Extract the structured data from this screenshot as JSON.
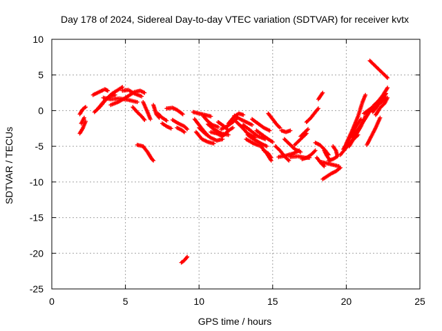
{
  "chart_data": {
    "type": "scatter",
    "title": "Day 178 of 2024, Sidereal Day-to-day VTEC variation (SDTVAR) for receiver kvtx",
    "xlabel": "GPS time / hours",
    "ylabel": "SDTVAR / TECUs",
    "xlim": [
      0,
      25
    ],
    "ylim": [
      -25,
      10
    ],
    "xticks": [
      0,
      5,
      10,
      15,
      20,
      25
    ],
    "yticks": [
      -25,
      -20,
      -15,
      -10,
      -5,
      0,
      5,
      10
    ],
    "xtick_labels": [
      "0",
      "5",
      "10",
      "15",
      "20",
      "25"
    ],
    "ytick_labels": [
      "-25",
      "-20",
      "-15",
      "-10",
      "-5",
      "0",
      "5",
      "10"
    ],
    "grid": true,
    "marker": "plus",
    "series": [
      {
        "name": "SDTVAR",
        "color": "#ff0000",
        "tracks": [
          [
            [
              1.9,
              -0.5
            ],
            [
              2.1,
              0.2
            ],
            [
              2.3,
              0.5
            ]
          ],
          [
            [
              1.9,
              -3.2
            ],
            [
              2.1,
              -2.5
            ],
            [
              2.3,
              -1.5
            ]
          ],
          [
            [
              2.0,
              -1.8
            ],
            [
              2.2,
              -1.0
            ]
          ],
          [
            [
              2.8,
              2.2
            ],
            [
              3.2,
              2.6
            ],
            [
              3.6,
              3.0
            ],
            [
              3.8,
              2.8
            ]
          ],
          [
            [
              2.9,
              -0.2
            ],
            [
              3.3,
              0.6
            ],
            [
              3.7,
              1.6
            ],
            [
              4.1,
              2.4
            ],
            [
              4.5,
              2.9
            ],
            [
              4.8,
              3.3
            ]
          ],
          [
            [
              3.1,
              0.2
            ],
            [
              3.5,
              1.2
            ],
            [
              3.9,
              2.0
            ],
            [
              4.3,
              2.2
            ]
          ],
          [
            [
              3.5,
              1.8
            ],
            [
              4.0,
              1.6
            ],
            [
              4.6,
              1.7
            ],
            [
              5.2,
              1.5
            ],
            [
              5.8,
              1.2
            ]
          ],
          [
            [
              4.0,
              0.8
            ],
            [
              4.5,
              1.2
            ],
            [
              5.0,
              1.8
            ],
            [
              5.6,
              2.6
            ],
            [
              6.0,
              2.8
            ],
            [
              6.3,
              2.5
            ]
          ],
          [
            [
              4.8,
              2.8
            ],
            [
              5.2,
              2.9
            ],
            [
              5.6,
              2.4
            ],
            [
              6.1,
              2.0
            ]
          ],
          [
            [
              5.5,
              0.5
            ],
            [
              5.8,
              -0.2
            ],
            [
              6.1,
              -0.8
            ],
            [
              6.3,
              -1.3
            ]
          ],
          [
            [
              6.2,
              1.2
            ],
            [
              6.5,
              -0.2
            ],
            [
              6.7,
              -1.2
            ]
          ],
          [
            [
              5.8,
              -4.8
            ],
            [
              6.2,
              -5.0
            ],
            [
              6.5,
              -5.8
            ],
            [
              6.8,
              -6.8
            ],
            [
              6.9,
              -7.0
            ]
          ],
          [
            [
              6.9,
              0.8
            ],
            [
              7.1,
              -0.5
            ],
            [
              7.3,
              -1.0
            ]
          ],
          [
            [
              7.2,
              -0.4
            ],
            [
              7.5,
              -1.0
            ],
            [
              7.8,
              -1.4
            ]
          ],
          [
            [
              7.5,
              -1.8
            ],
            [
              7.8,
              -2.2
            ],
            [
              8.1,
              -2.5
            ]
          ],
          [
            [
              7.8,
              0.3
            ],
            [
              8.2,
              0.4
            ],
            [
              8.5,
              0.1
            ],
            [
              8.9,
              -0.5
            ]
          ],
          [
            [
              8.2,
              -1.3
            ],
            [
              8.6,
              -1.8
            ],
            [
              9.0,
              -2.2
            ],
            [
              9.2,
              -2.6
            ]
          ],
          [
            [
              8.5,
              -2.4
            ],
            [
              8.8,
              -2.7
            ],
            [
              9.0,
              -3.0
            ]
          ],
          [
            [
              8.8,
              -21.3
            ],
            [
              9.0,
              -21.0
            ],
            [
              9.2,
              -20.5
            ]
          ],
          [
            [
              9.6,
              -0.2
            ],
            [
              10.0,
              -0.4
            ],
            [
              10.4,
              -0.6
            ],
            [
              10.8,
              -0.8
            ]
          ],
          [
            [
              9.7,
              -1.2
            ],
            [
              10.0,
              -2.0
            ],
            [
              10.3,
              -2.8
            ],
            [
              10.6,
              -3.5
            ]
          ],
          [
            [
              9.8,
              -3.0
            ],
            [
              10.2,
              -4.0
            ],
            [
              10.6,
              -4.4
            ],
            [
              11.0,
              -4.6
            ]
          ],
          [
            [
              10.0,
              -2.4
            ],
            [
              10.4,
              -3.2
            ],
            [
              10.8,
              -3.8
            ],
            [
              11.2,
              -4.2
            ],
            [
              11.6,
              -4.0
            ]
          ],
          [
            [
              10.3,
              -0.8
            ],
            [
              10.6,
              -1.5
            ],
            [
              10.9,
              -2.0
            ],
            [
              11.3,
              -2.3
            ]
          ],
          [
            [
              10.6,
              -1.9
            ],
            [
              11.0,
              -2.6
            ],
            [
              11.5,
              -3.2
            ],
            [
              12.0,
              -3.4
            ]
          ],
          [
            [
              10.8,
              -3.0
            ],
            [
              11.2,
              -3.2
            ],
            [
              11.6,
              -3.6
            ],
            [
              12.0,
              -2.8
            ]
          ],
          [
            [
              11.3,
              -1.6
            ],
            [
              11.7,
              -2.2
            ],
            [
              12.0,
              -2.8
            ],
            [
              12.3,
              -2.4
            ]
          ],
          [
            [
              11.5,
              -2.6
            ],
            [
              11.9,
              -2.2
            ],
            [
              12.3,
              -1.6
            ],
            [
              12.6,
              -1.0
            ]
          ],
          [
            [
              12.0,
              -1.8
            ],
            [
              12.4,
              -0.8
            ],
            [
              12.7,
              -0.4
            ],
            [
              13.0,
              -0.6
            ]
          ],
          [
            [
              12.4,
              -0.7
            ],
            [
              12.8,
              -1.2
            ],
            [
              13.2,
              -1.6
            ],
            [
              13.6,
              -2.0
            ]
          ],
          [
            [
              12.5,
              -1.5
            ],
            [
              12.9,
              -2.3
            ],
            [
              13.3,
              -3.2
            ],
            [
              13.8,
              -3.8
            ]
          ],
          [
            [
              13.0,
              -2.0
            ],
            [
              13.5,
              -2.8
            ],
            [
              14.0,
              -3.6
            ],
            [
              14.5,
              -4.0
            ]
          ],
          [
            [
              13.3,
              -3.4
            ],
            [
              13.7,
              -4.0
            ],
            [
              14.2,
              -4.6
            ],
            [
              14.6,
              -5.0
            ]
          ],
          [
            [
              13.6,
              -1.2
            ],
            [
              14.0,
              -1.8
            ],
            [
              14.4,
              -2.4
            ],
            [
              14.8,
              -2.8
            ]
          ],
          [
            [
              13.2,
              -4.0
            ],
            [
              13.7,
              -4.6
            ],
            [
              14.2,
              -5.0
            ],
            [
              14.6,
              -6.0
            ],
            [
              14.9,
              -7.0
            ]
          ],
          [
            [
              13.9,
              -2.8
            ],
            [
              14.3,
              -3.4
            ],
            [
              14.7,
              -4.0
            ],
            [
              15.0,
              -4.4
            ]
          ],
          [
            [
              14.7,
              -0.4
            ],
            [
              15.0,
              -1.2
            ],
            [
              15.3,
              -2.0
            ],
            [
              15.5,
              -2.4
            ]
          ],
          [
            [
              14.4,
              -5.6
            ],
            [
              14.7,
              -6.0
            ],
            [
              14.9,
              -6.6
            ]
          ],
          [
            [
              15.2,
              -5.0
            ],
            [
              15.5,
              -5.6
            ],
            [
              15.8,
              -6.4
            ],
            [
              16.1,
              -7.0
            ]
          ],
          [
            [
              15.6,
              -2.8
            ],
            [
              15.9,
              -3.0
            ],
            [
              16.2,
              -2.8
            ]
          ],
          [
            [
              15.4,
              -6.5
            ],
            [
              15.9,
              -6.3
            ],
            [
              16.4,
              -6.0
            ],
            [
              16.8,
              -5.6
            ]
          ],
          [
            [
              15.8,
              -4.0
            ],
            [
              16.1,
              -4.6
            ],
            [
              16.5,
              -5.4
            ],
            [
              16.9,
              -5.8
            ]
          ],
          [
            [
              16.2,
              -6.5
            ],
            [
              16.7,
              -6.4
            ],
            [
              17.2,
              -6.6
            ],
            [
              17.5,
              -6.6
            ]
          ],
          [
            [
              16.5,
              -4.8
            ],
            [
              16.8,
              -4.2
            ],
            [
              17.1,
              -3.6
            ],
            [
              17.3,
              -3.2
            ]
          ],
          [
            [
              16.9,
              -3.6
            ],
            [
              17.2,
              -3.0
            ],
            [
              17.4,
              -2.6
            ]
          ],
          [
            [
              17.0,
              -6.8
            ],
            [
              17.3,
              -6.6
            ],
            [
              17.6,
              -6.2
            ],
            [
              17.9,
              -5.6
            ]
          ],
          [
            [
              17.3,
              -1.6
            ],
            [
              17.6,
              -1.0
            ],
            [
              17.9,
              -0.2
            ],
            [
              18.1,
              0.3
            ]
          ],
          [
            [
              17.9,
              -4.5
            ],
            [
              18.2,
              -4.8
            ],
            [
              18.5,
              -5.4
            ],
            [
              18.8,
              -6.2
            ]
          ],
          [
            [
              18.0,
              -6.6
            ],
            [
              18.3,
              -7.4
            ],
            [
              18.5,
              -7.8
            ]
          ],
          [
            [
              18.1,
              1.6
            ],
            [
              18.3,
              2.2
            ],
            [
              18.4,
              2.5
            ]
          ],
          [
            [
              18.3,
              -7.2
            ],
            [
              18.7,
              -7.4
            ],
            [
              19.1,
              -7.6
            ],
            [
              19.5,
              -7.8
            ]
          ],
          [
            [
              18.5,
              -5.6
            ],
            [
              18.7,
              -6.4
            ],
            [
              18.9,
              -7.0
            ]
          ],
          [
            [
              18.4,
              -9.6
            ],
            [
              18.7,
              -9.2
            ],
            [
              19.0,
              -8.8
            ],
            [
              19.3,
              -8.5
            ],
            [
              19.6,
              -8.0
            ]
          ],
          [
            [
              18.8,
              -7.0
            ],
            [
              19.1,
              -6.8
            ],
            [
              19.4,
              -6.4
            ]
          ],
          [
            [
              19.1,
              -5.0
            ],
            [
              19.3,
              -5.6
            ],
            [
              19.4,
              -6.4
            ]
          ],
          [
            [
              19.6,
              -6.2
            ],
            [
              20.0,
              -5.2
            ],
            [
              20.4,
              -4.2
            ],
            [
              20.8,
              -3.4
            ]
          ],
          [
            [
              19.8,
              -5.4
            ],
            [
              20.2,
              -4.0
            ],
            [
              20.6,
              -2.4
            ],
            [
              21.0,
              -1.2
            ]
          ],
          [
            [
              20.0,
              -4.6
            ],
            [
              20.4,
              -2.8
            ],
            [
              20.8,
              -0.8
            ],
            [
              21.1,
              1.2
            ],
            [
              21.3,
              2.2
            ]
          ],
          [
            [
              20.2,
              -5.0
            ],
            [
              20.6,
              -3.6
            ],
            [
              21.0,
              -2.2
            ],
            [
              21.3,
              -0.8
            ]
          ],
          [
            [
              20.4,
              -3.6
            ],
            [
              20.8,
              -2.6
            ],
            [
              21.2,
              -1.4
            ],
            [
              21.5,
              -0.4
            ],
            [
              21.8,
              0.6
            ]
          ],
          [
            [
              21.2,
              -0.4
            ],
            [
              21.6,
              0.2
            ],
            [
              22.0,
              0.6
            ],
            [
              22.4,
              1.2
            ],
            [
              22.7,
              1.8
            ]
          ],
          [
            [
              21.4,
              -4.8
            ],
            [
              21.7,
              -3.6
            ],
            [
              22.0,
              -2.4
            ],
            [
              22.3,
              -1.0
            ]
          ],
          [
            [
              21.8,
              -0.2
            ],
            [
              22.1,
              0.6
            ],
            [
              22.4,
              1.6
            ],
            [
              22.7,
              2.4
            ]
          ],
          [
            [
              21.9,
              0.8
            ],
            [
              22.2,
              1.4
            ],
            [
              22.5,
              2.2
            ],
            [
              22.8,
              3.2
            ]
          ],
          [
            [
              22.0,
              -0.6
            ],
            [
              22.3,
              0.4
            ],
            [
              22.6,
              1.0
            ],
            [
              22.8,
              1.8
            ]
          ],
          [
            [
              21.6,
              7.0
            ],
            [
              21.9,
              6.4
            ],
            [
              22.2,
              5.8
            ],
            [
              22.5,
              5.2
            ],
            [
              22.8,
              4.6
            ]
          ]
        ]
      }
    ]
  }
}
